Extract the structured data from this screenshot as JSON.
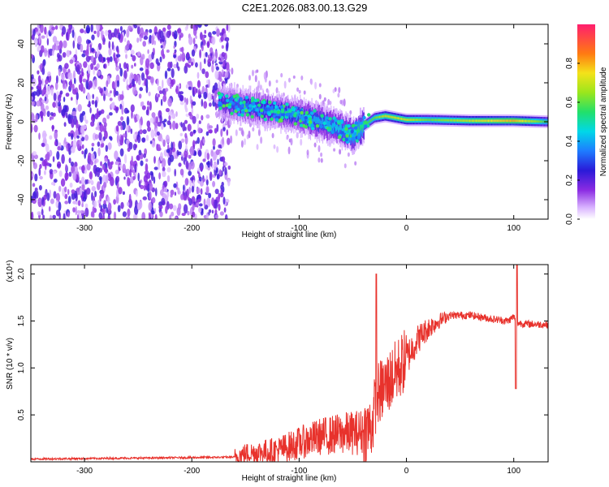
{
  "title": "C2E1.2026.083.00.13.G29",
  "chart_data": [
    {
      "type": "heatmap",
      "xlabel": "Height of straight line (km)",
      "ylabel": "Frequency (Hz)",
      "xlim": [
        -350,
        132
      ],
      "ylim": [
        -50,
        50
      ],
      "xticks": [
        -300,
        -200,
        -100,
        0,
        100
      ],
      "xtick_labels": [
        "-300",
        "-200",
        "-100",
        "0",
        "100"
      ],
      "yticks": [
        -40,
        -20,
        0,
        20,
        40
      ],
      "ytick_labels": [
        "-40",
        "-20",
        "0",
        "20",
        "40"
      ],
      "colorbar": {
        "label": "Normalized spectral amplitude",
        "range": [
          0,
          1
        ],
        "ticks": [
          0.0,
          0.2,
          0.4,
          0.6,
          0.8
        ],
        "tick_labels": [
          "0.0",
          "0.2",
          "0.4",
          "0.6",
          "0.8"
        ]
      },
      "ridge": {
        "x": [
          -175,
          -150,
          -120,
          -100,
          -80,
          -60,
          -50,
          -40,
          -30,
          -20,
          0,
          20,
          60,
          100,
          132
        ],
        "freq": [
          10,
          8,
          5,
          3,
          0,
          -4,
          -7,
          -2,
          2,
          3,
          1,
          1,
          0.5,
          0.5,
          0
        ],
        "amplitude": [
          0.25,
          0.35,
          0.35,
          0.4,
          0.4,
          0.45,
          0.5,
          0.55,
          0.6,
          0.7,
          0.7,
          0.6,
          0.7,
          0.8,
          0.55
        ]
      },
      "noise_region": {
        "x_range": [
          -350,
          -165
        ],
        "amplitude": 0.1
      }
    },
    {
      "type": "line",
      "xlabel": "Height of straight line (km)",
      "ylabel": "SNR (10 * v/v)",
      "y_multiplier": "(x10⁴)",
      "xlim": [
        -350,
        132
      ],
      "ylim": [
        0,
        2.1
      ],
      "xticks": [
        -300,
        -200,
        -100,
        0,
        100
      ],
      "xtick_labels": [
        "-300",
        "-200",
        "-100",
        "0",
        "100"
      ],
      "yticks": [
        0.5,
        1.0,
        1.5,
        2.0
      ],
      "ytick_labels": [
        "0.5",
        "1.0",
        "1.5",
        "2.0"
      ],
      "series": [
        {
          "name": "SNR",
          "color": "#e8322c",
          "x": [
            -350,
            -250,
            -160,
            -150,
            -120,
            -100,
            -80,
            -60,
            -40,
            -32,
            -28,
            -20,
            -10,
            0,
            10,
            20,
            30,
            40,
            60,
            80,
            95,
            100,
            102,
            110,
            132
          ],
          "y": [
            0.03,
            0.04,
            0.05,
            0.09,
            0.12,
            0.2,
            0.27,
            0.3,
            0.32,
            0.38,
            0.7,
            0.8,
            0.95,
            1.1,
            1.3,
            1.42,
            1.5,
            1.56,
            1.56,
            1.52,
            1.5,
            1.55,
            1.48,
            1.47,
            1.46
          ]
        }
      ],
      "annotations": [
        {
          "x": -28,
          "y": 2.0,
          "label": "spike"
        },
        {
          "x": 103,
          "y": 2.1,
          "label": "spike"
        },
        {
          "x": 102,
          "y": 0.78,
          "label": "dip"
        }
      ]
    }
  ]
}
